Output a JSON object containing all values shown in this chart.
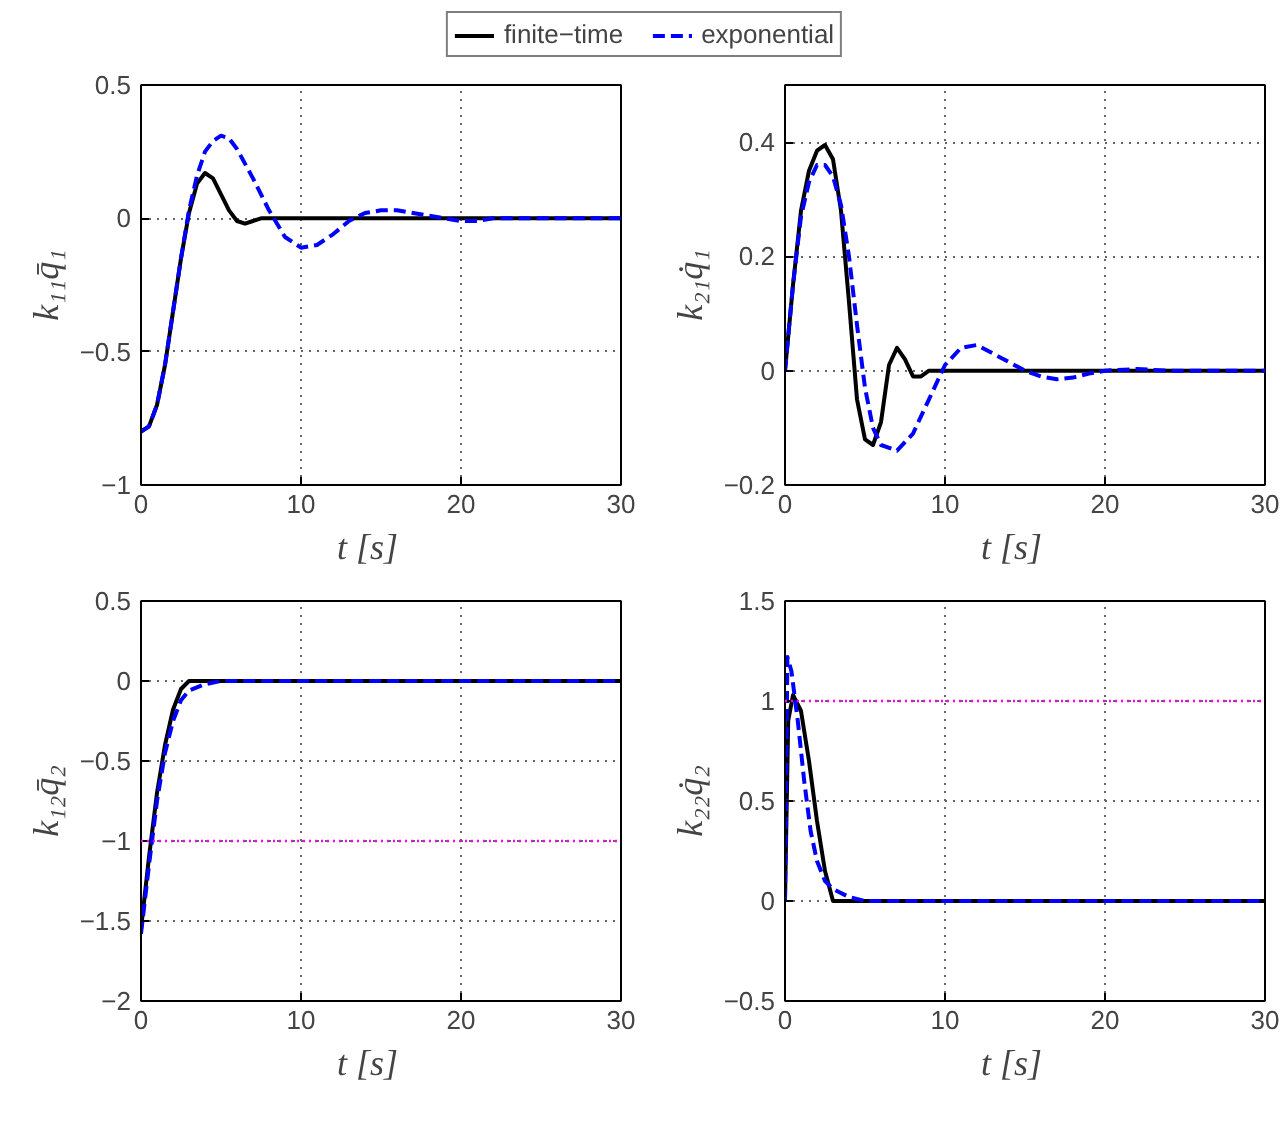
{
  "chart_data": [
    {
      "type": "line",
      "ylabel": "k₁₁q̄₁",
      "xlabel": "t    [s]",
      "xlim": [
        0,
        30
      ],
      "xticks": [
        0,
        10,
        20,
        30
      ],
      "ylim": [
        -1,
        0.5
      ],
      "yticks": [
        -1,
        -0.5,
        0,
        0.5
      ],
      "grid": true,
      "legend": "top",
      "series": [
        {
          "name": "finite−time",
          "color": "#000000",
          "line_style": "solid",
          "x": [
            0,
            0.5,
            1,
            1.5,
            2,
            2.5,
            3,
            3.5,
            4,
            4.5,
            5,
            5.5,
            6,
            6.5,
            7,
            7.5,
            8,
            9,
            30
          ],
          "values": [
            -0.8,
            -0.78,
            -0.7,
            -0.55,
            -0.35,
            -0.15,
            0.02,
            0.13,
            0.17,
            0.15,
            0.09,
            0.03,
            -0.01,
            -0.02,
            -0.01,
            0,
            0,
            0,
            0
          ]
        },
        {
          "name": "exponential",
          "color": "#0000ff",
          "line_style": "dashed",
          "x": [
            0,
            0.5,
            1,
            1.5,
            2,
            2.5,
            3,
            3.5,
            4,
            4.5,
            5,
            5.5,
            6,
            7,
            8,
            9,
            10,
            11,
            12,
            13,
            14,
            15,
            16,
            17,
            18,
            19,
            20,
            21,
            22,
            24,
            30
          ],
          "values": [
            -0.8,
            -0.78,
            -0.7,
            -0.55,
            -0.35,
            -0.15,
            0.03,
            0.16,
            0.25,
            0.29,
            0.31,
            0.3,
            0.26,
            0.15,
            0.03,
            -0.07,
            -0.11,
            -0.1,
            -0.06,
            -0.01,
            0.02,
            0.03,
            0.03,
            0.02,
            0.01,
            0,
            -0.01,
            -0.01,
            0,
            0,
            0
          ]
        }
      ]
    },
    {
      "type": "line",
      "ylabel": "k₂₁q̇₁",
      "xlabel": "t    [s]",
      "xlim": [
        0,
        30
      ],
      "xticks": [
        0,
        10,
        20,
        30
      ],
      "ylim": [
        -0.2,
        0.5
      ],
      "yticks": [
        -0.2,
        0,
        0.2,
        0.4
      ],
      "grid": true,
      "series": [
        {
          "color": "#000000",
          "line_style": "solid",
          "x": [
            0,
            0.5,
            1,
            1.5,
            2,
            2.5,
            3,
            3.5,
            4,
            4.5,
            5,
            5.5,
            6,
            6.5,
            7,
            7.5,
            8,
            8.5,
            9,
            30
          ],
          "values": [
            0,
            0.15,
            0.28,
            0.35,
            0.385,
            0.395,
            0.37,
            0.28,
            0.12,
            -0.05,
            -0.12,
            -0.13,
            -0.09,
            0.01,
            0.04,
            0.02,
            -0.01,
            -0.01,
            0,
            0
          ]
        },
        {
          "color": "#0000ff",
          "line_style": "dashed",
          "x": [
            0,
            0.5,
            1,
            1.5,
            2,
            2.5,
            3,
            3.5,
            4,
            4.5,
            5,
            5.5,
            6,
            7,
            8,
            9,
            10,
            11,
            12,
            13,
            15,
            16,
            17,
            18,
            19,
            20,
            22,
            24,
            30
          ],
          "values": [
            0,
            0.15,
            0.27,
            0.33,
            0.36,
            0.36,
            0.34,
            0.29,
            0.2,
            0.08,
            -0.03,
            -0.1,
            -0.13,
            -0.14,
            -0.11,
            -0.05,
            0.01,
            0.04,
            0.045,
            0.03,
            0,
            -0.01,
            -0.015,
            -0.012,
            -0.005,
            0,
            0.003,
            0,
            0
          ]
        }
      ]
    },
    {
      "type": "line",
      "ylabel": "k₁₂q̄₂",
      "xlabel": "t    [s]",
      "xlim": [
        0,
        30
      ],
      "xticks": [
        0,
        10,
        20,
        30
      ],
      "ylim": [
        -2,
        0.5
      ],
      "yticks": [
        -2,
        -1.5,
        -1,
        -0.5,
        0,
        0.5
      ],
      "grid": true,
      "ref_lines": [
        {
          "axis": "y",
          "value": -1,
          "color": "#ff00ff",
          "line_style": "dotted"
        }
      ],
      "series": [
        {
          "color": "#000000",
          "line_style": "solid",
          "x": [
            0,
            0.5,
            1,
            1.5,
            2,
            2.5,
            3,
            30
          ],
          "values": [
            -1.55,
            -1.1,
            -0.7,
            -0.4,
            -0.18,
            -0.05,
            0,
            0
          ]
        },
        {
          "color": "#0000ff",
          "line_style": "dashed",
          "x": [
            0,
            0.5,
            1,
            1.5,
            2,
            2.5,
            3,
            4,
            5,
            6,
            30
          ],
          "values": [
            -1.58,
            -1.15,
            -0.75,
            -0.45,
            -0.25,
            -0.12,
            -0.06,
            -0.02,
            0,
            0,
            0
          ]
        }
      ]
    },
    {
      "type": "line",
      "ylabel": "k₂₂q̇₂",
      "xlabel": "t    [s]",
      "xlim": [
        0,
        30
      ],
      "xticks": [
        0,
        10,
        20,
        30
      ],
      "ylim": [
        -0.5,
        1.5
      ],
      "yticks": [
        -0.5,
        0,
        0.5,
        1,
        1.5
      ],
      "grid": true,
      "ref_lines": [
        {
          "axis": "y",
          "value": 1,
          "color": "#ff00ff",
          "line_style": "dotted"
        }
      ],
      "series": [
        {
          "color": "#000000",
          "line_style": "solid",
          "x": [
            0,
            0.2,
            0.5,
            1,
            1.5,
            2,
            2.5,
            3,
            30
          ],
          "values": [
            0,
            0.9,
            1.03,
            0.95,
            0.7,
            0.4,
            0.15,
            0,
            0
          ]
        },
        {
          "color": "#0000ff",
          "line_style": "dashed",
          "x": [
            0,
            0.15,
            0.4,
            0.8,
            1.2,
            1.6,
            2,
            2.5,
            3,
            4,
            5,
            30
          ],
          "values": [
            0,
            1.22,
            1.15,
            0.9,
            0.6,
            0.35,
            0.2,
            0.1,
            0.06,
            0.02,
            0,
            0
          ]
        }
      ]
    }
  ]
}
